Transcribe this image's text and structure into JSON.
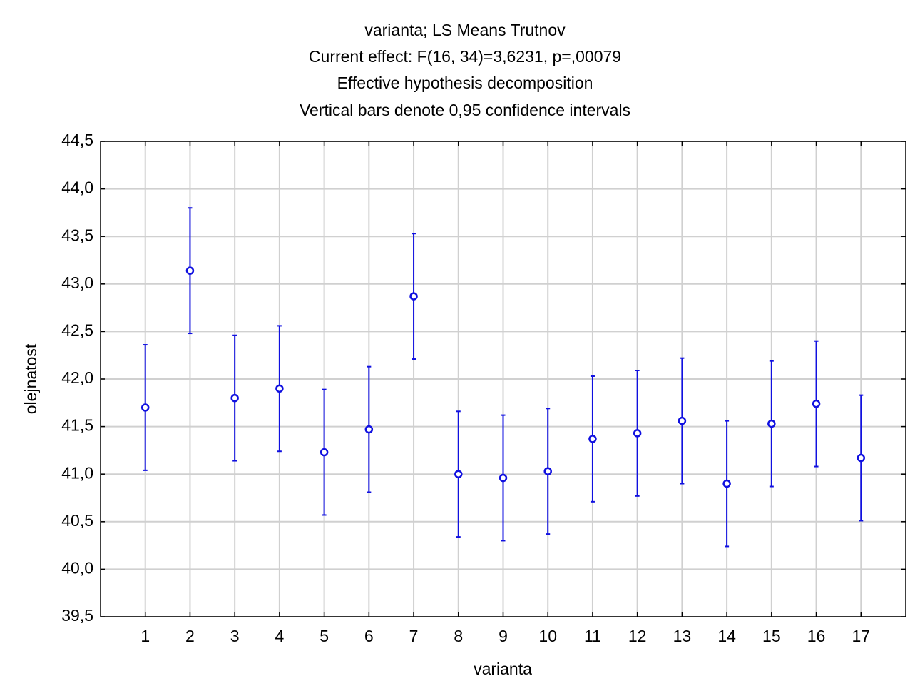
{
  "chart_data": {
    "type": "errorbar",
    "title_lines": [
      "varianta; LS Means Trutnov",
      "Current effect: F(16, 34)=3,6231, p=,00079",
      "Effective hypothesis decomposition",
      "Vertical bars denote 0,95 confidence intervals"
    ],
    "x_label": "varianta",
    "y_label": "olejnatost",
    "categories": [
      "1",
      "2",
      "3",
      "4",
      "5",
      "6",
      "7",
      "8",
      "9",
      "10",
      "11",
      "12",
      "13",
      "14",
      "15",
      "16",
      "17"
    ],
    "values": [
      41.7,
      43.14,
      41.8,
      41.9,
      41.23,
      41.47,
      42.87,
      41.0,
      40.96,
      41.03,
      41.37,
      41.43,
      41.56,
      40.9,
      41.53,
      41.74,
      41.17
    ],
    "errors": [
      0.66,
      0.66,
      0.66,
      0.66,
      0.66,
      0.66,
      0.66,
      0.66,
      0.66,
      0.66,
      0.66,
      0.66,
      0.66,
      0.66,
      0.66,
      0.66,
      0.66
    ],
    "color": "#1010e0",
    "ylim": [
      39.5,
      44.5
    ],
    "yticks": [
      {
        "value": 39.5,
        "label": "39,5"
      },
      {
        "value": 40.0,
        "label": "40,0"
      },
      {
        "value": 40.5,
        "label": "40,5"
      },
      {
        "value": 41.0,
        "label": "41,0"
      },
      {
        "value": 41.5,
        "label": "41,5"
      },
      {
        "value": 42.0,
        "label": "42,0"
      },
      {
        "value": 42.5,
        "label": "42,5"
      },
      {
        "value": 43.0,
        "label": "43,0"
      },
      {
        "value": 43.5,
        "label": "43,5"
      },
      {
        "value": 44.0,
        "label": "44,0"
      },
      {
        "value": 44.5,
        "label": "44,5"
      }
    ],
    "grid": true
  }
}
